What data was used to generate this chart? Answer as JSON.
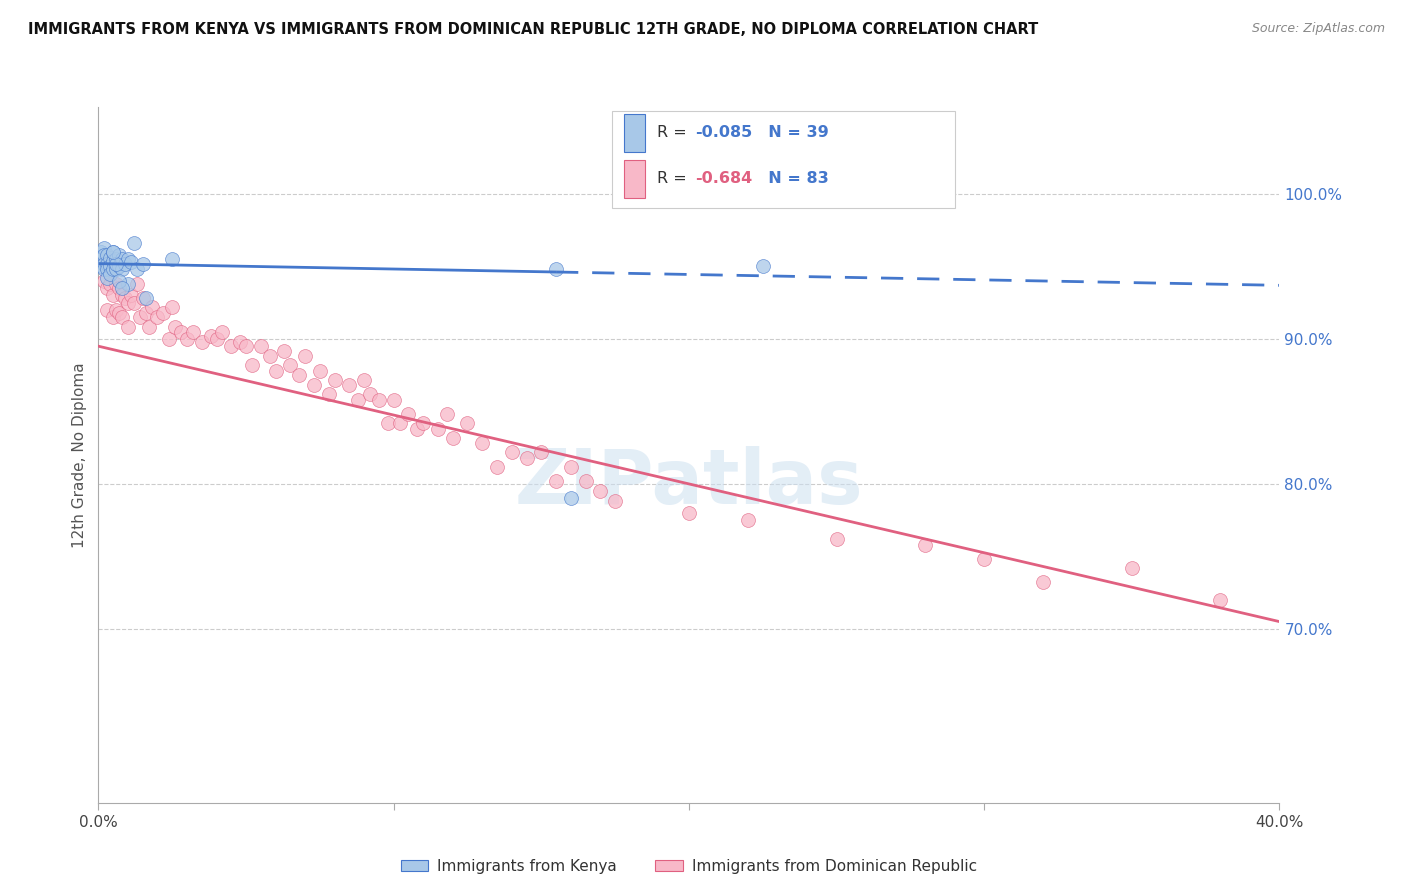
{
  "title": "IMMIGRANTS FROM KENYA VS IMMIGRANTS FROM DOMINICAN REPUBLIC 12TH GRADE, NO DIPLOMA CORRELATION CHART",
  "source_text": "Source: ZipAtlas.com",
  "ylabel": "12th Grade, No Diploma",
  "right_ytick_labels": [
    "100.0%",
    "90.0%",
    "80.0%",
    "70.0%"
  ],
  "right_ytick_values": [
    1.0,
    0.9,
    0.8,
    0.7
  ],
  "x_min": 0.0,
  "x_max": 0.4,
  "y_min": 0.58,
  "y_max": 1.06,
  "kenya_R": -0.085,
  "kenya_N": 39,
  "dr_R": -0.684,
  "dr_N": 83,
  "kenya_color": "#A8C8E8",
  "dr_color": "#F8B8C8",
  "kenya_line_color": "#4477CC",
  "dr_line_color": "#E06080",
  "legend_R_color": "#4477CC",
  "legend_N_color": "#333333",
  "watermark": "ZIPatlas",
  "kenya_line_x0": 0.0,
  "kenya_line_x_solid_end": 0.155,
  "kenya_line_x1": 0.4,
  "kenya_line_y0": 0.952,
  "kenya_line_y1": 0.937,
  "dr_line_x0": 0.0,
  "dr_line_x1": 0.4,
  "dr_line_y0": 0.895,
  "dr_line_y1": 0.705,
  "kenya_scatter_x": [
    0.001,
    0.001,
    0.001,
    0.002,
    0.002,
    0.002,
    0.002,
    0.003,
    0.003,
    0.003,
    0.003,
    0.004,
    0.004,
    0.004,
    0.005,
    0.005,
    0.005,
    0.006,
    0.006,
    0.007,
    0.007,
    0.008,
    0.008,
    0.009,
    0.01,
    0.011,
    0.012,
    0.013,
    0.015,
    0.016,
    0.025,
    0.155,
    0.16,
    0.225,
    0.01,
    0.007,
    0.008,
    0.006,
    0.005
  ],
  "kenya_scatter_y": [
    0.96,
    0.955,
    0.95,
    0.963,
    0.958,
    0.952,
    0.948,
    0.958,
    0.952,
    0.948,
    0.942,
    0.956,
    0.95,
    0.945,
    0.96,
    0.954,
    0.948,
    0.955,
    0.948,
    0.958,
    0.95,
    0.955,
    0.948,
    0.952,
    0.955,
    0.953,
    0.966,
    0.948,
    0.952,
    0.928,
    0.955,
    0.948,
    0.79,
    0.95,
    0.938,
    0.94,
    0.935,
    0.952,
    0.96
  ],
  "dr_scatter_x": [
    0.002,
    0.003,
    0.003,
    0.004,
    0.005,
    0.005,
    0.006,
    0.006,
    0.007,
    0.007,
    0.008,
    0.008,
    0.009,
    0.01,
    0.01,
    0.011,
    0.012,
    0.013,
    0.014,
    0.015,
    0.016,
    0.017,
    0.018,
    0.02,
    0.022,
    0.024,
    0.025,
    0.026,
    0.028,
    0.03,
    0.032,
    0.035,
    0.038,
    0.04,
    0.042,
    0.045,
    0.048,
    0.05,
    0.052,
    0.055,
    0.058,
    0.06,
    0.063,
    0.065,
    0.068,
    0.07,
    0.073,
    0.075,
    0.078,
    0.08,
    0.085,
    0.088,
    0.09,
    0.092,
    0.095,
    0.098,
    0.1,
    0.102,
    0.105,
    0.108,
    0.11,
    0.115,
    0.118,
    0.12,
    0.125,
    0.13,
    0.135,
    0.14,
    0.145,
    0.15,
    0.155,
    0.16,
    0.165,
    0.17,
    0.175,
    0.2,
    0.22,
    0.25,
    0.28,
    0.3,
    0.32,
    0.35,
    0.38
  ],
  "dr_scatter_y": [
    0.94,
    0.935,
    0.92,
    0.938,
    0.93,
    0.915,
    0.938,
    0.92,
    0.935,
    0.918,
    0.93,
    0.915,
    0.928,
    0.925,
    0.908,
    0.93,
    0.925,
    0.938,
    0.915,
    0.928,
    0.918,
    0.908,
    0.922,
    0.915,
    0.918,
    0.9,
    0.922,
    0.908,
    0.905,
    0.9,
    0.905,
    0.898,
    0.902,
    0.9,
    0.905,
    0.895,
    0.898,
    0.895,
    0.882,
    0.895,
    0.888,
    0.878,
    0.892,
    0.882,
    0.875,
    0.888,
    0.868,
    0.878,
    0.862,
    0.872,
    0.868,
    0.858,
    0.872,
    0.862,
    0.858,
    0.842,
    0.858,
    0.842,
    0.848,
    0.838,
    0.842,
    0.838,
    0.848,
    0.832,
    0.842,
    0.828,
    0.812,
    0.822,
    0.818,
    0.822,
    0.802,
    0.812,
    0.802,
    0.795,
    0.788,
    0.78,
    0.775,
    0.762,
    0.758,
    0.748,
    0.732,
    0.742,
    0.72
  ]
}
